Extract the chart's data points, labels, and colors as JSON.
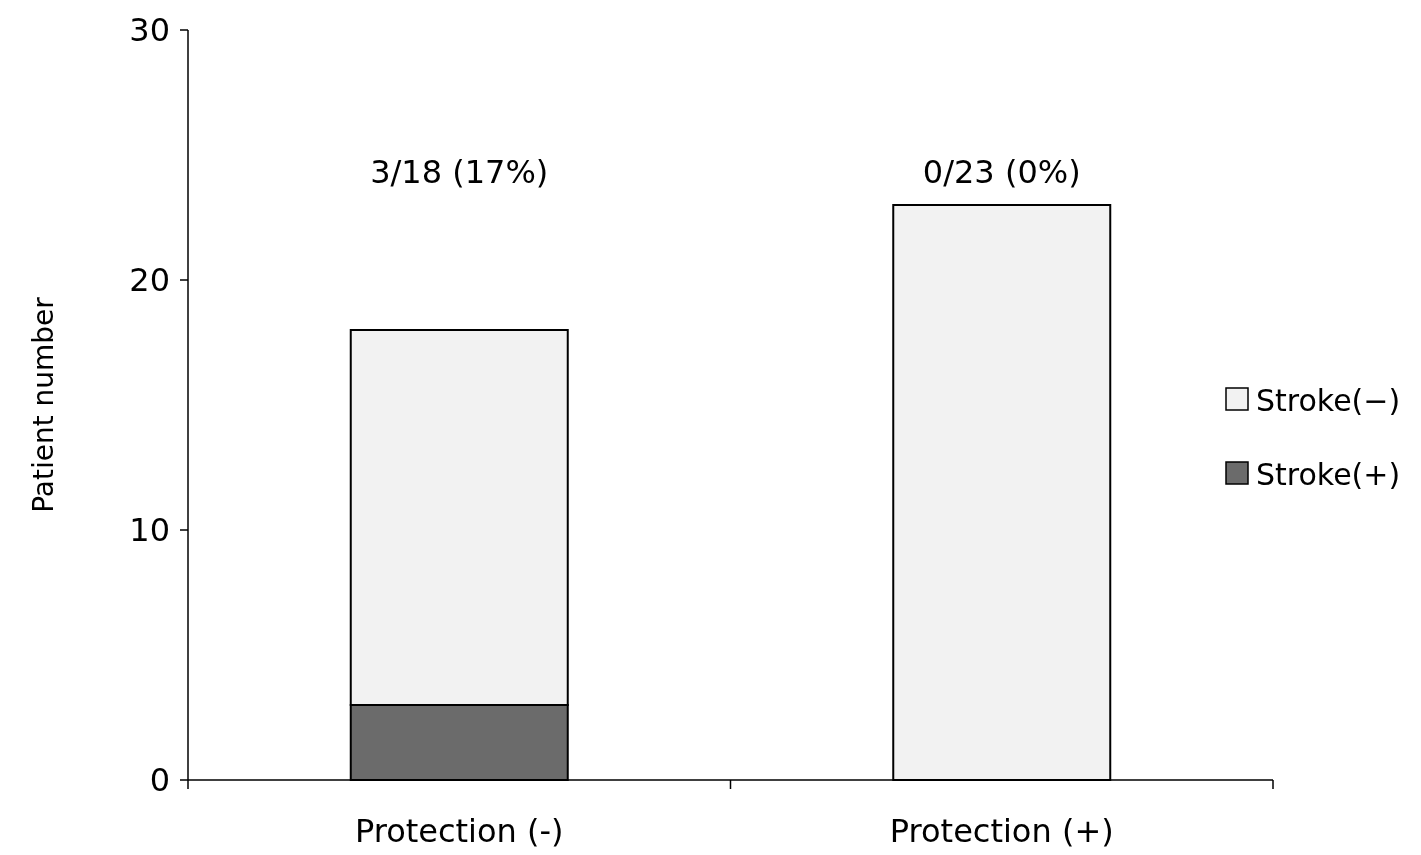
{
  "chart_data": {
    "type": "bar",
    "stacked": true,
    "ylabel": "Patient number",
    "categories": [
      "Protection (-)",
      "Protection (+)"
    ],
    "series": [
      {
        "name": "Stroke(+)",
        "color": "#6b6b6b",
        "values": [
          3,
          0
        ]
      },
      {
        "name": "Stroke(−)",
        "color": "#f2f2f2",
        "values": [
          15,
          23
        ]
      }
    ],
    "ylim": [
      0,
      30
    ],
    "yticks": [
      0,
      10,
      20,
      30
    ],
    "grid": false,
    "legend": "right",
    "annotations": [
      "3/18 (17%)",
      "0/23 (0%)"
    ]
  }
}
